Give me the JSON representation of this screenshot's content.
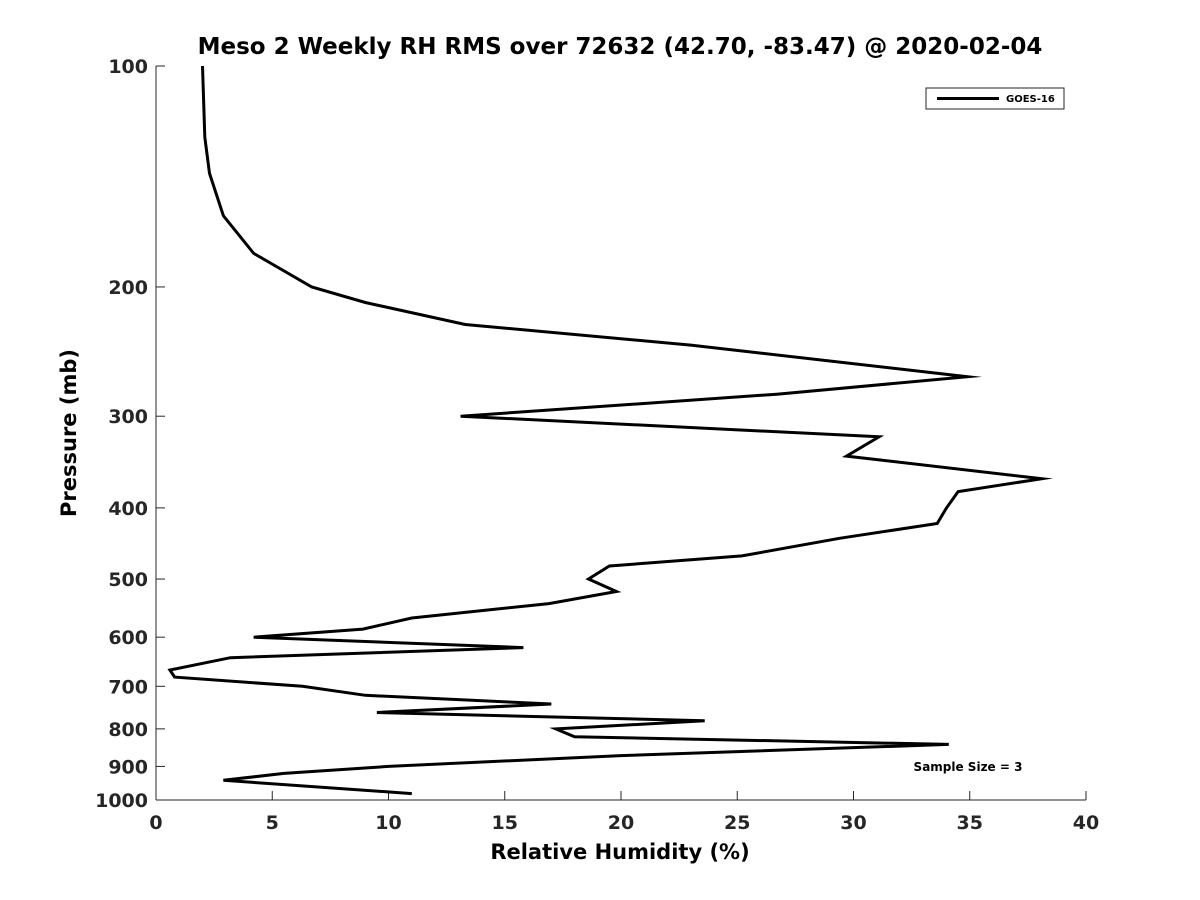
{
  "chart_data": {
    "type": "line",
    "title": "Meso 2 Weekly RH RMS over 72632 (42.70, -83.47) @ 2020-02-04",
    "xlabel": "Relative Humidity (%)",
    "ylabel": "Pressure (mb)",
    "xlim": [
      0,
      40
    ],
    "ylim": [
      100,
      1000
    ],
    "yscale": "log",
    "y_reversed": true,
    "grid": false,
    "x_ticks": [
      0,
      5,
      10,
      15,
      20,
      25,
      30,
      35,
      40
    ],
    "y_ticks": [
      100,
      200,
      300,
      400,
      500,
      600,
      700,
      800,
      900,
      1000
    ],
    "legend": {
      "entries": [
        "GOES-16"
      ],
      "placement": "top-right"
    },
    "annotation": "Sample Size = 3",
    "series": [
      {
        "name": "GOES-16",
        "color": "#000000",
        "points": [
          [
            2.0,
            100
          ],
          [
            2.1,
            125
          ],
          [
            2.3,
            140
          ],
          [
            2.9,
            160
          ],
          [
            4.2,
            180
          ],
          [
            6.7,
            200
          ],
          [
            9.0,
            210
          ],
          [
            13.3,
            225
          ],
          [
            23.0,
            240
          ],
          [
            34.9,
            265
          ],
          [
            26.7,
            280
          ],
          [
            13.1,
            300
          ],
          [
            31.1,
            320
          ],
          [
            29.7,
            340
          ],
          [
            38.1,
            365
          ],
          [
            34.5,
            380
          ],
          [
            34.0,
            400
          ],
          [
            33.6,
            420
          ],
          [
            29.4,
            440
          ],
          [
            25.2,
            465
          ],
          [
            19.5,
            480
          ],
          [
            18.6,
            500
          ],
          [
            19.8,
            520
          ],
          [
            16.9,
            540
          ],
          [
            11.0,
            565
          ],
          [
            8.9,
            585
          ],
          [
            4.2,
            600
          ],
          [
            15.8,
            620
          ],
          [
            3.2,
            640
          ],
          [
            0.6,
            665
          ],
          [
            0.8,
            680
          ],
          [
            6.3,
            700
          ],
          [
            9.0,
            720
          ],
          [
            17.0,
            740
          ],
          [
            9.5,
            760
          ],
          [
            23.6,
            780
          ],
          [
            17.2,
            800
          ],
          [
            18.0,
            820
          ],
          [
            34.1,
            840
          ],
          [
            20.0,
            870
          ],
          [
            10.0,
            900
          ],
          [
            5.5,
            920
          ],
          [
            2.9,
            940
          ],
          [
            11.0,
            980
          ]
        ]
      }
    ]
  }
}
